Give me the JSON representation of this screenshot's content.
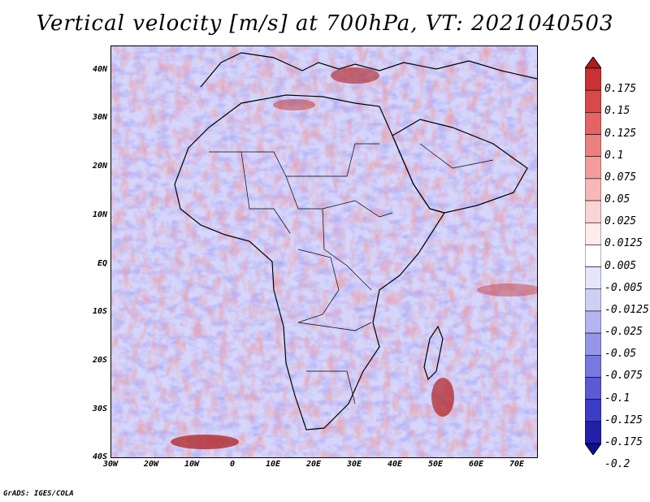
{
  "title": "Vertical velocity [m/s] at 700hPa, VT: 2021040503",
  "credit": "GrADS: IGES/COLA",
  "y_axis_labels": [
    "40N",
    "30N",
    "20N",
    "10N",
    "EQ",
    "10S",
    "20S",
    "30S",
    "40S"
  ],
  "x_axis_labels": [
    "30W",
    "20W",
    "10W",
    "0",
    "10E",
    "20E",
    "30E",
    "40E",
    "50E",
    "60E",
    "70E"
  ],
  "colorbar": {
    "labels": [
      "0.175",
      "0.15",
      "0.125",
      "0.1",
      "0.075",
      "0.05",
      "0.025",
      "0.0125",
      "0.005",
      "-0.005",
      "-0.0125",
      "-0.025",
      "-0.05",
      "-0.075",
      "-0.1",
      "-0.125",
      "-0.175",
      "-0.2"
    ],
    "colors": [
      "#b01c1c",
      "#c83232",
      "#d84a4a",
      "#e46464",
      "#ec8080",
      "#f29c9c",
      "#f6b8b8",
      "#fad4d4",
      "#fdecec",
      "#ffffff",
      "#e6e6fa",
      "#cfcff6",
      "#b4b4f0",
      "#9696e8",
      "#7878e0",
      "#5a5ad4",
      "#3c3cc4",
      "#2020a8",
      "#101090"
    ]
  },
  "map": {
    "lon_range": [
      -30,
      75
    ],
    "lat_range": [
      -40,
      45
    ]
  }
}
